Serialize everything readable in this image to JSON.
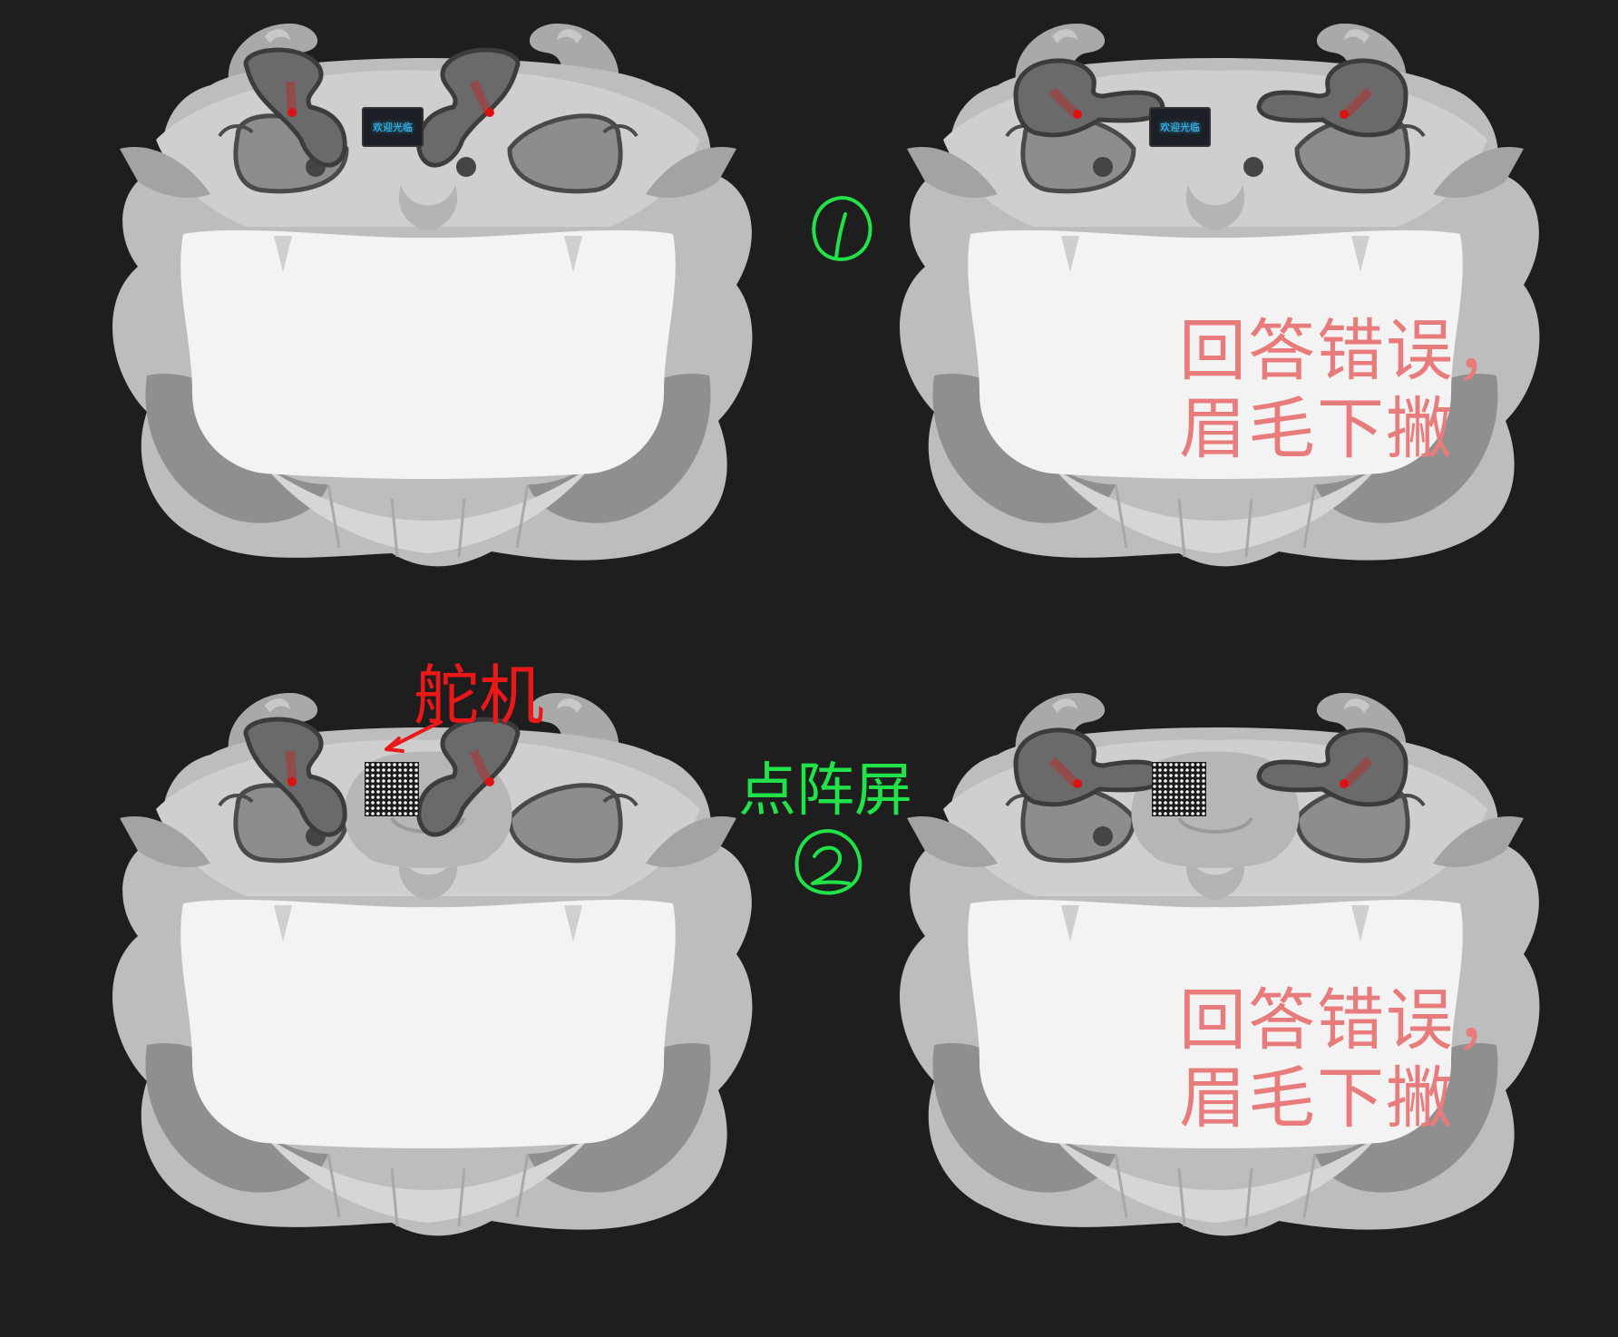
{
  "panels": [
    {
      "id": 1,
      "eyebrow": "neutral",
      "eye_display": "oled",
      "oled_text": "欢迎光临",
      "mouth_text": ""
    },
    {
      "id": 2,
      "eyebrow": "down",
      "eye_display": "oled",
      "oled_text": "欢迎光临",
      "mouth_text": "回答错误，\n眉毛下撇"
    },
    {
      "id": 3,
      "eyebrow": "neutral",
      "eye_display": "matrix",
      "oled_text": "",
      "mouth_text": ""
    },
    {
      "id": 4,
      "eyebrow": "down",
      "eye_display": "matrix",
      "oled_text": "",
      "mouth_text": "回答错误，\n眉毛下撇"
    }
  ],
  "annotations": {
    "servo_label": "舵机",
    "matrix_label": "点阵屏",
    "step1_marker": "1",
    "step2_marker": "2"
  },
  "colors": {
    "background": "#1e1e1e",
    "servo_label": "#ea1818",
    "matrix_label": "#22e24a",
    "mouth_text": "#e87c7c",
    "servo_dot": "#dd1111"
  }
}
